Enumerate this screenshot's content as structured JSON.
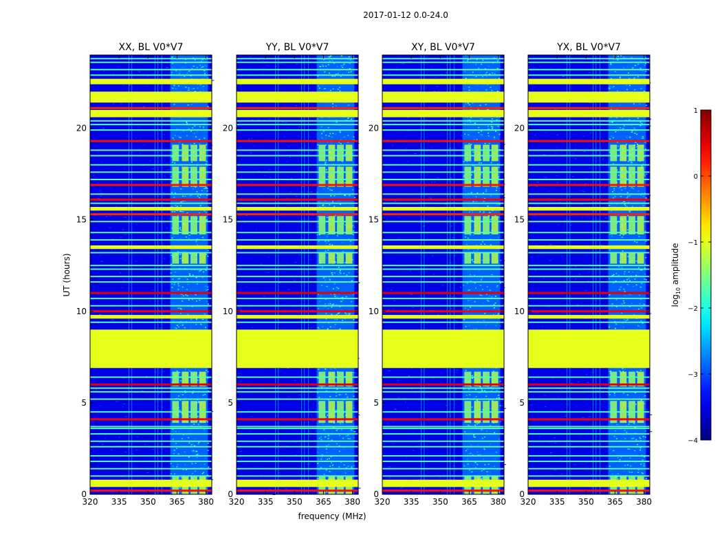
{
  "figure": {
    "suptitle": "2017-01-12 0.0-24.0",
    "xlabel": "frequency (MHz)",
    "ylabel": "UT (hours)"
  },
  "chart_data": {
    "type": "heatmap",
    "title": "2017-01-12 0.0-24.0",
    "xlabel": "frequency (MHz)",
    "ylabel": "UT (hours)",
    "xlim": [
      320,
      383
    ],
    "ylim": [
      0,
      24
    ],
    "x_ticks": [
      320,
      335,
      350,
      365,
      380
    ],
    "y_ticks": [
      0,
      5,
      10,
      15,
      20
    ],
    "panels": [
      {
        "title": "XX, BL V0*V7",
        "show_ylabels": true
      },
      {
        "title": "YY, BL V0*V7",
        "show_ylabels": true
      },
      {
        "title": "XY, BL V0*V7",
        "show_ylabels": true
      },
      {
        "title": "YX, BL V0*V7",
        "show_ylabels": true
      }
    ],
    "rfi_band_mhz": [
      361.5,
      381
    ],
    "rfi_subband_starts_mhz": [
      362.5,
      367.5,
      372,
      376.5
    ],
    "rfi_subband_width_mhz": 3.5,
    "flagged_time_ranges_hours": [
      {
        "start": 6.9,
        "end": 9.0,
        "value": -1.0
      },
      {
        "start": 21.4,
        "end": 22.0,
        "value": -1.0
      },
      {
        "start": 20.6,
        "end": 21.0,
        "value": -1.0
      },
      {
        "start": 22.4,
        "end": 22.7,
        "value": -1.0
      },
      {
        "start": 0.4,
        "end": 0.8,
        "value": -1.0
      },
      {
        "start": 13.4,
        "end": 13.6,
        "value": -1.0
      },
      {
        "start": 9.6,
        "end": 9.8,
        "value": -1.0
      },
      {
        "start": 15.5,
        "end": 15.7,
        "value": -1.0
      }
    ],
    "hot_time_lines_hours": [
      {
        "t": 21.1,
        "value": 0.2
      },
      {
        "t": 15.3,
        "value": 0.2
      },
      {
        "t": 19.3,
        "value": 0.3
      },
      {
        "t": 16.9,
        "value": 0.3
      },
      {
        "t": 16.1,
        "value": 0.4
      },
      {
        "t": 11.0,
        "value": 0.5
      },
      {
        "t": 10.0,
        "value": 0.4
      },
      {
        "t": 4.1,
        "value": 0.4
      },
      {
        "t": 6.0,
        "value": 0.5
      },
      {
        "t": 0.2,
        "value": 0.3
      }
    ],
    "flag_time_lines_hours": [
      1.0,
      1.4,
      1.8,
      2.1,
      2.6,
      2.9,
      3.3,
      3.6,
      3.7,
      4.5,
      5.2,
      5.6,
      5.8,
      6.4,
      9.4,
      10.3,
      10.7,
      11.6,
      11.9,
      12.3,
      12.5,
      13.2,
      13.9,
      14.3,
      14.9,
      15.9,
      16.4,
      17.2,
      17.6,
      18.0,
      18.5,
      18.8,
      19.9,
      20.2,
      20.4,
      22.9,
      23.2,
      23.6,
      23.8
    ],
    "colorbar": {
      "label": "log₁₀ amplitude",
      "label_prefix": "log",
      "label_sub": "10",
      "label_suffix": " amplitude",
      "min": -4,
      "max": 1,
      "ticks": [
        1,
        0,
        -1,
        -2,
        -3,
        -4
      ],
      "tick_labels": [
        "1",
        "0",
        "−1",
        "−2",
        "−3",
        "−4"
      ],
      "colormap": "jet"
    }
  }
}
